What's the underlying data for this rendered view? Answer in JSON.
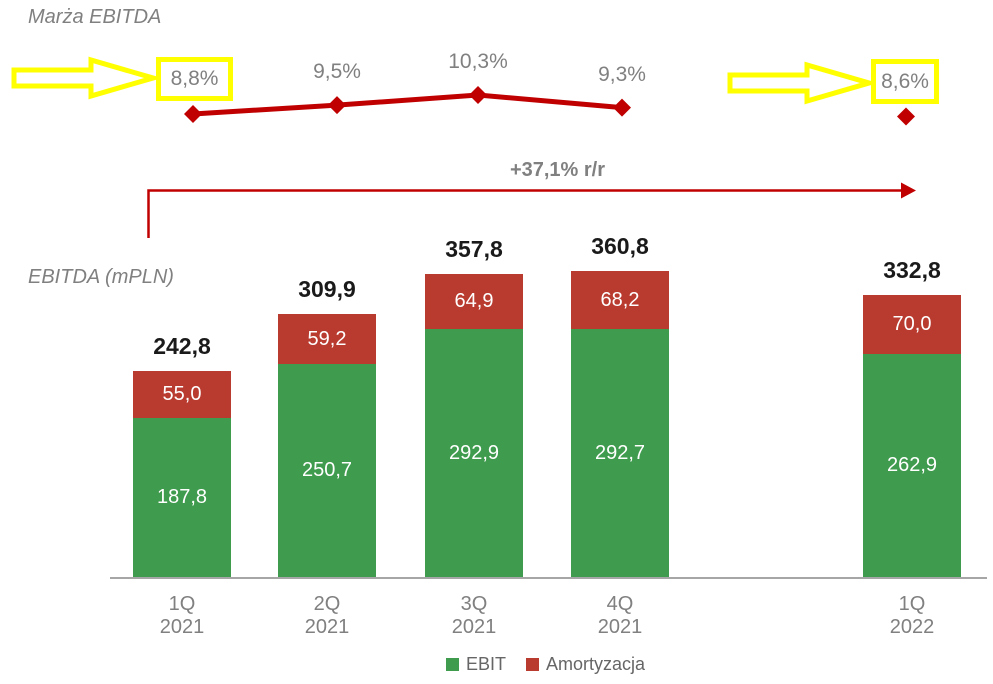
{
  "colors": {
    "green": "#3f9b4e",
    "red_bar": "#b93b30",
    "red_line": "#c00000",
    "yellow": "#ffff00",
    "gray_text": "#808080",
    "axis_gray": "#a6a6a6",
    "legend_text": "#666666"
  },
  "growth": {
    "label": "+37,1% r/r"
  },
  "chart_data": [
    {
      "type": "line",
      "title": "Marża EBITDA",
      "x": [
        "1Q 2021",
        "2Q 2021",
        "3Q 2021",
        "4Q 2021",
        "1Q 2022"
      ],
      "values": [
        8.8,
        9.5,
        10.3,
        9.3,
        8.6
      ],
      "point_labels": [
        "8,8%",
        "9,5%",
        "10,3%",
        "9,3%",
        "8,6%"
      ],
      "highlighted_points": [
        0,
        4
      ],
      "marker": "diamond",
      "line_color": "#c00000",
      "notes": "first and last points boxed in yellow with yellow block arrows; last point not connected to line"
    },
    {
      "type": "bar",
      "stacked": true,
      "title": "EBITDA (mPLN)",
      "categories": [
        "1Q 2021",
        "2Q 2021",
        "3Q 2021",
        "4Q 2021",
        "1Q 2022"
      ],
      "series": [
        {
          "name": "EBIT",
          "color": "#3f9b4e",
          "values": [
            187.8,
            250.7,
            292.9,
            292.7,
            262.9
          ],
          "labels": [
            "187,8",
            "250,7",
            "292,9",
            "292,7",
            "262,9"
          ]
        },
        {
          "name": "Amortyzacja",
          "color": "#b93b30",
          "values": [
            55.0,
            59.2,
            64.9,
            68.2,
            70.0
          ],
          "labels": [
            "55,0",
            "59,2",
            "64,9",
            "68,2",
            "70,0"
          ]
        }
      ],
      "totals": [
        242.8,
        309.9,
        357.8,
        360.8,
        332.8
      ],
      "total_labels": [
        "242,8",
        "309,9",
        "357,8",
        "360,8",
        "332,8"
      ],
      "annotation": "+37,1% r/r",
      "legend": [
        "EBIT",
        "Amortyzacja"
      ],
      "legend_position": "bottom",
      "layout_hint": "gap between 4Q 2021 and 1Q 2022 bars"
    }
  ]
}
